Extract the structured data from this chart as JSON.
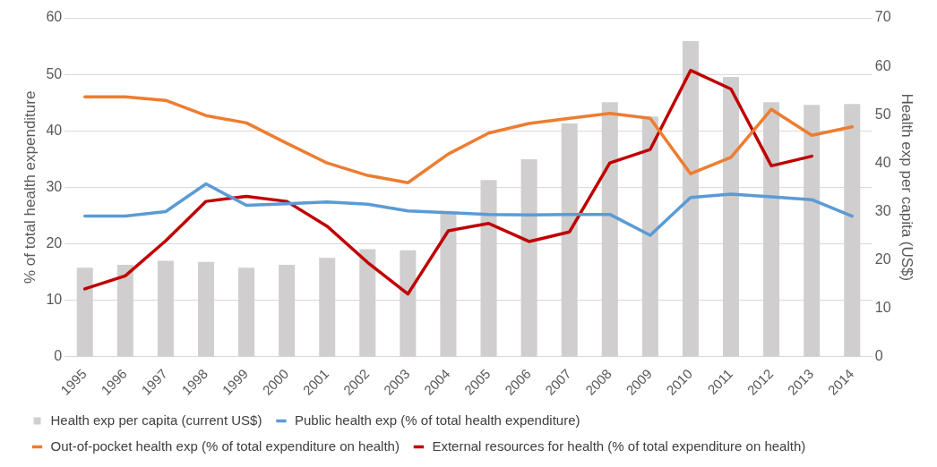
{
  "chart_data": {
    "type": "bar",
    "ylabel": "% of total health expenditure",
    "y2label": "Health exp per capita (US$)",
    "categories": [
      "1995",
      "1996",
      "1997",
      "1998",
      "1999",
      "2000",
      "2001",
      "2002",
      "2003",
      "2004",
      "2005",
      "2006",
      "2007",
      "2008",
      "2009",
      "2010",
      "2011",
      "2012",
      "2013",
      "2014"
    ],
    "series": [
      {
        "name": "Health exp per capita (current US$)",
        "axis": "y2",
        "color": "#d0cece",
        "values": [
          18.4,
          19.0,
          19.8,
          19.6,
          18.4,
          19.0,
          20.4,
          22.2,
          22.0,
          30.1,
          36.5,
          40.8,
          48.2,
          52.6,
          49.6,
          65.2,
          57.8,
          52.6,
          52.0,
          52.2
        ]
      },
      {
        "name": "Public health exp (% of total health expenditure)",
        "type": "line",
        "color": "#5b9bd5",
        "values": [
          24.9,
          24.9,
          25.7,
          30.6,
          26.8,
          27.1,
          27.4,
          27.0,
          25.8,
          25.5,
          25.2,
          25.1,
          25.2,
          25.2,
          21.5,
          28.2,
          28.8,
          28.3,
          27.8,
          24.9
        ]
      },
      {
        "name": "Out-of-pocket health exp (% of total expenditure on health)",
        "type": "line",
        "color": "#ed7d31",
        "values": [
          46.0,
          46.0,
          45.4,
          42.7,
          41.4,
          37.8,
          34.3,
          32.1,
          30.8,
          35.9,
          39.6,
          41.3,
          42.2,
          43.1,
          42.2,
          32.4,
          35.3,
          43.8,
          39.2,
          40.7
        ]
      },
      {
        "name": "External resources for health (% of total expenditure on health)",
        "type": "line",
        "color": "#c00000",
        "values": [
          12.0,
          14.3,
          20.5,
          27.5,
          28.4,
          27.5,
          23.1,
          16.7,
          11.1,
          22.3,
          23.6,
          20.4,
          22.1,
          34.3,
          36.7,
          50.7,
          47.4,
          33.8,
          35.5,
          null
        ]
      }
    ],
    "ylim": [
      0,
      60
    ],
    "yticks": [
      0,
      10,
      20,
      30,
      40,
      50,
      60
    ],
    "y2lim": [
      0,
      70
    ],
    "y2ticks": [
      0,
      10,
      20,
      30,
      40,
      50,
      60,
      70
    ],
    "grid": "y",
    "legend": "bottom",
    "marker": "none",
    "line_style": "solid"
  }
}
